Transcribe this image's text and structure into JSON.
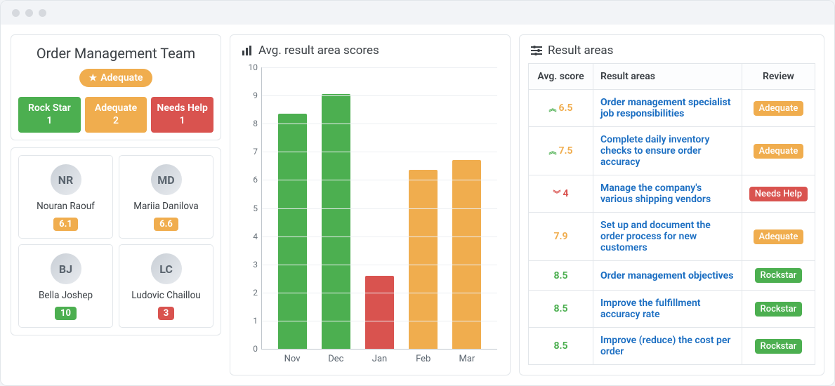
{
  "colors": {
    "green": "#4caf50",
    "amber": "#f0ad4e",
    "red": "#d9534f",
    "link": "#1b6ec2"
  },
  "team": {
    "title": "Order Management Team",
    "overall_label": "Adequate",
    "overall_color": "#f0ad4e",
    "status_tiles": [
      {
        "label": "Rock Star",
        "count": 1,
        "color": "#4caf50"
      },
      {
        "label": "Adequate",
        "count": 2,
        "color": "#f0ad4e"
      },
      {
        "label": "Needs Help",
        "count": 1,
        "color": "#d9534f"
      }
    ],
    "people": [
      {
        "name": "Nouran Raouf",
        "score": "6.1",
        "badge_color": "#f0ad4e",
        "initials": "NR"
      },
      {
        "name": "Mariia Danilova",
        "score": "6.6",
        "badge_color": "#f0ad4e",
        "initials": "MD"
      },
      {
        "name": "Bella Joshep",
        "score": "10",
        "badge_color": "#4caf50",
        "initials": "BJ"
      },
      {
        "name": "Ludovic Chaillou",
        "score": "3",
        "badge_color": "#d9534f",
        "initials": "LC"
      }
    ]
  },
  "chart": {
    "title": "Avg. result area scores",
    "type": "bar",
    "categories": [
      "Nov",
      "Dec",
      "Jan",
      "Feb",
      "Mar"
    ],
    "values": [
      8.35,
      9.05,
      2.6,
      6.35,
      6.7
    ],
    "bar_colors": [
      "#4caf50",
      "#4caf50",
      "#d9534f",
      "#f0ad4e",
      "#f0ad4e"
    ],
    "ylim": [
      0,
      10
    ],
    "ytick_step": 1,
    "grid_color": "#eceff2",
    "axis_color": "#bfc6cc",
    "label_fontsize": 12
  },
  "result_areas": {
    "title": "Result areas",
    "columns": [
      "Avg. score",
      "Result areas",
      "Review"
    ],
    "rows": [
      {
        "score": "6.5",
        "score_color": "#f0ad4e",
        "trend": "up",
        "area": "Order management specialist job responsibilities",
        "bold": true,
        "review": "Adequate",
        "review_color": "#f0ad4e"
      },
      {
        "score": "7.5",
        "score_color": "#f0ad4e",
        "trend": "up",
        "area": "Complete daily inventory checks to ensure order accuracy",
        "bold": false,
        "review": "Adequate",
        "review_color": "#f0ad4e"
      },
      {
        "score": "4",
        "score_color": "#d9534f",
        "trend": "down",
        "area": "Manage the company's various shipping vendors",
        "bold": false,
        "review": "Needs Help",
        "review_color": "#d9534f"
      },
      {
        "score": "7.9",
        "score_color": "#f0ad4e",
        "trend": "none",
        "area": "Set up and document the order process for new customers",
        "bold": false,
        "review": "Adequate",
        "review_color": "#f0ad4e"
      },
      {
        "score": "8.5",
        "score_color": "#4caf50",
        "trend": "none",
        "area": "Order management objectives",
        "bold": true,
        "review": "Rockstar",
        "review_color": "#4caf50"
      },
      {
        "score": "8.5",
        "score_color": "#4caf50",
        "trend": "none",
        "area": "Improve the fulfillment accuracy rate",
        "bold": false,
        "review": "Rockstar",
        "review_color": "#4caf50"
      },
      {
        "score": "8.5",
        "score_color": "#4caf50",
        "trend": "none",
        "area": "Improve (reduce) the cost per order",
        "bold": false,
        "review": "Rockstar",
        "review_color": "#4caf50"
      }
    ]
  }
}
